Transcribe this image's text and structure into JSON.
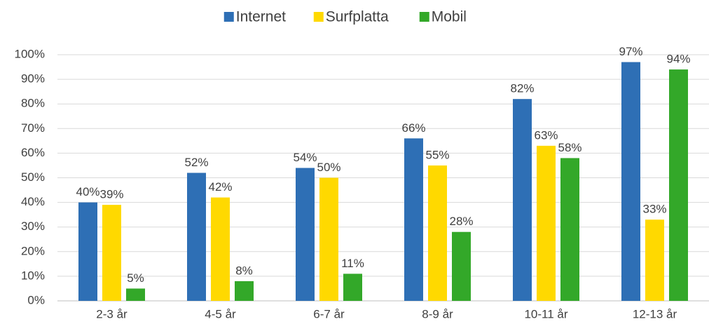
{
  "chart_data": {
    "type": "bar",
    "categories": [
      "2-3 år",
      "4-5 år",
      "6-7 år",
      "8-9 år",
      "10-11 år",
      "12-13 år"
    ],
    "series": [
      {
        "name": "Internet",
        "color": "#2e6fb5",
        "values": [
          40,
          52,
          54,
          66,
          82,
          97
        ],
        "value_labels": [
          "40%",
          "52%",
          "54%",
          "66%",
          "82%",
          "97%"
        ]
      },
      {
        "name": "Surfplatta",
        "color": "#ffd900",
        "values": [
          39,
          42,
          50,
          55,
          63,
          33
        ],
        "value_labels": [
          "39%",
          "42%",
          "50%",
          "55%",
          "63%",
          "33%"
        ]
      },
      {
        "name": "Mobil",
        "color": "#33a829",
        "values": [
          5,
          8,
          11,
          28,
          58,
          94
        ],
        "value_labels": [
          "5%",
          "8%",
          "11%",
          "28%",
          "58%",
          "94%"
        ]
      }
    ],
    "ylim": [
      0,
      100
    ],
    "yticks": [
      {
        "value": 0,
        "label": "0%"
      },
      {
        "value": 10,
        "label": "10%"
      },
      {
        "value": 20,
        "label": "20%"
      },
      {
        "value": 30,
        "label": "30%"
      },
      {
        "value": 40,
        "label": "40%"
      },
      {
        "value": 50,
        "label": "50%"
      },
      {
        "value": 60,
        "label": "60%"
      },
      {
        "value": 70,
        "label": "70%"
      },
      {
        "value": 80,
        "label": "80%"
      },
      {
        "value": 90,
        "label": "90%"
      },
      {
        "value": 100,
        "label": "100%"
      }
    ],
    "grid": true,
    "legend": "top"
  }
}
